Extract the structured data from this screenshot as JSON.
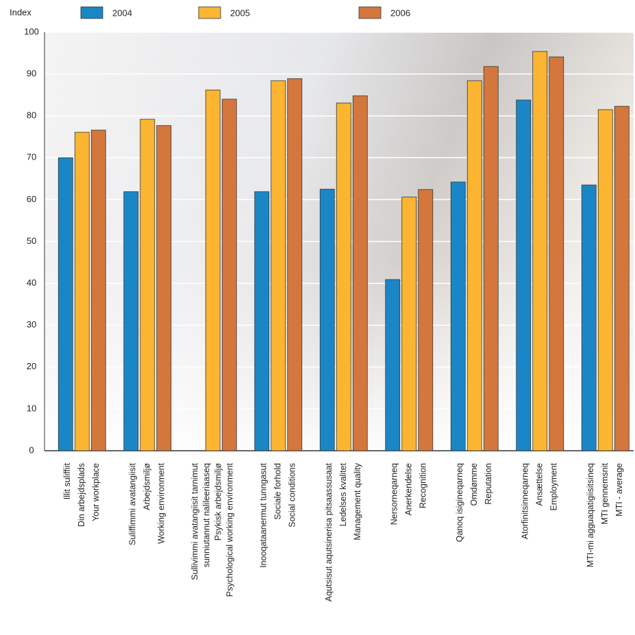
{
  "chart_data": {
    "type": "bar",
    "y_label": "Index",
    "categories": [
      [
        "Illit suliffiit",
        "Din arbejdsplads",
        "Your workplace"
      ],
      [
        "Suliffimmi avatangiisit",
        "Arbejdsmiljø",
        "Working environment"
      ],
      [
        "Sullivimmi avatangiisit tarnimut",
        "sunniutannut nalileeriaaseq",
        "Psykisk arbejdsmiljø",
        "Psychological working environment"
      ],
      [
        "Inooqataanermut tunngasut",
        "Sociale forhold",
        "Social conditions"
      ],
      [
        "Aqutsisut aqutsinerisa pitsaassusaat",
        "Ledelses kvalitet",
        "Management quality"
      ],
      [
        "Nersorneqarneq",
        "Anerkendelse",
        "Recognition"
      ],
      [
        "Qanoq isigineqarneq",
        "Omdømme",
        "Reputation"
      ],
      [
        "Atorfinitsinneqarneq",
        "Ansættelse",
        "Employment"
      ],
      [
        "MTI-mi agguaqatigiisitsineq",
        "MTI gennemsnit",
        "MTI - average"
      ]
    ],
    "series": [
      {
        "name": "2004",
        "color": "#1b86c6",
        "values": [
          70.0,
          61.9,
          null,
          61.9,
          62.5,
          40.9,
          64.2,
          83.8,
          63.5
        ]
      },
      {
        "name": "2005",
        "color": "#fbb531",
        "values": [
          76.1,
          79.2,
          86.2,
          88.4,
          83.1,
          60.6,
          88.4,
          95.4,
          81.5
        ]
      },
      {
        "name": "2006",
        "color": "#d4773c",
        "values": [
          76.6,
          77.7,
          84.0,
          88.9,
          84.8,
          62.4,
          91.8,
          94.1,
          82.3
        ]
      }
    ],
    "ylim": [
      0,
      100
    ],
    "yticks": [
      0,
      10,
      20,
      30,
      40,
      50,
      60,
      70,
      80,
      90,
      100
    ],
    "grid": true
  }
}
